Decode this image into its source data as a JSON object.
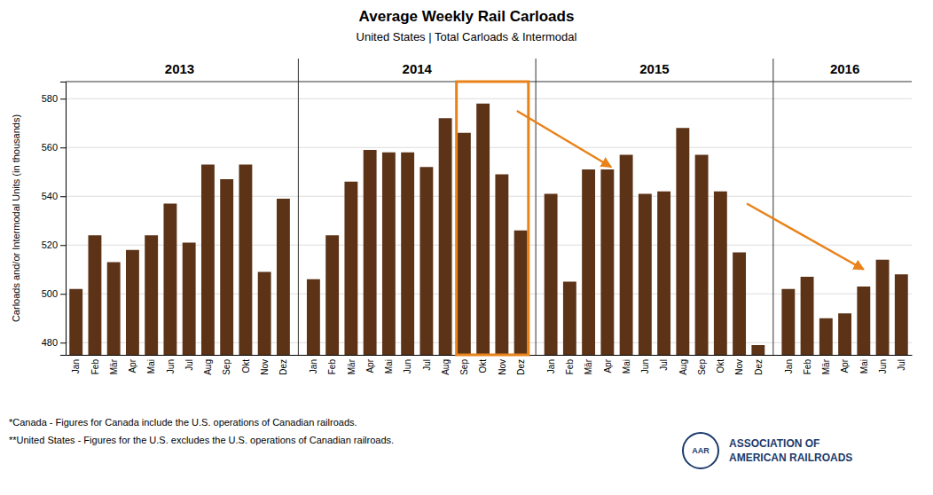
{
  "chart_data": {
    "type": "bar",
    "title": "Average Weekly Rail Carloads",
    "subtitle": "United States | Total Carloads & Intermodal",
    "ylabel": "Carloads and/or Intermodal Units (in thousands)",
    "categories": [
      "Jan",
      "Feb",
      "Mär",
      "Apr",
      "Mai",
      "Jun",
      "Jul",
      "Aug",
      "Sep",
      "Okt",
      "Nov",
      "Dez",
      "Jan",
      "Feb",
      "Mär",
      "Apr",
      "Mai",
      "Jun",
      "Jul",
      "Aug",
      "Sep",
      "Okt",
      "Nov",
      "Dez",
      "Jan",
      "Feb",
      "Mär",
      "Apr",
      "Mai",
      "Jun",
      "Jul",
      "Aug",
      "Sep",
      "Okt",
      "Nov",
      "Dez",
      "Jan",
      "Feb",
      "Mär",
      "Apr",
      "Mai",
      "Jun",
      "Jul"
    ],
    "groups": [
      "2013",
      "2013",
      "2013",
      "2013",
      "2013",
      "2013",
      "2013",
      "2013",
      "2013",
      "2013",
      "2013",
      "2013",
      "2014",
      "2014",
      "2014",
      "2014",
      "2014",
      "2014",
      "2014",
      "2014",
      "2014",
      "2014",
      "2014",
      "2014",
      "2015",
      "2015",
      "2015",
      "2015",
      "2015",
      "2015",
      "2015",
      "2015",
      "2015",
      "2015",
      "2015",
      "2015",
      "2016",
      "2016",
      "2016",
      "2016",
      "2016",
      "2016",
      "2016"
    ],
    "values": [
      502,
      524,
      513,
      518,
      524,
      537,
      521,
      553,
      547,
      553,
      509,
      539,
      506,
      524,
      546,
      559,
      558,
      558,
      552,
      572,
      566,
      578,
      549,
      526,
      541,
      505,
      551,
      551,
      557,
      541,
      542,
      568,
      557,
      542,
      517,
      479,
      502,
      507,
      490,
      492,
      503,
      514,
      508
    ],
    "color": "#5C3317",
    "ylim": [
      475,
      587
    ],
    "yticks": [
      480,
      500,
      520,
      540,
      560,
      580
    ],
    "grid": true,
    "annotations": [
      {
        "type": "box",
        "from": 20,
        "to": 23,
        "color": "#E8821A"
      },
      {
        "type": "arrow",
        "x": [
          22.8,
          27.2
        ],
        "y": [
          575,
          552
        ],
        "color": "#E8821A"
      },
      {
        "type": "arrow",
        "x": [
          34.4,
          40
        ],
        "y": [
          537,
          510
        ],
        "color": "#E8821A"
      },
      {
        "type": "text",
        "text": "*Canada - Figures for Canada include the U.S. operations of Canadian railroads."
      },
      {
        "type": "text",
        "text": "**United States - Figures for the U.S. excludes the U.S. operations of Canadian railroads."
      },
      {
        "type": "logo",
        "text": "AAR",
        "lines": [
          "ASSOCIATION OF",
          "AMERICAN RAILROADS"
        ],
        "color": "#1B3A6B"
      }
    ]
  }
}
